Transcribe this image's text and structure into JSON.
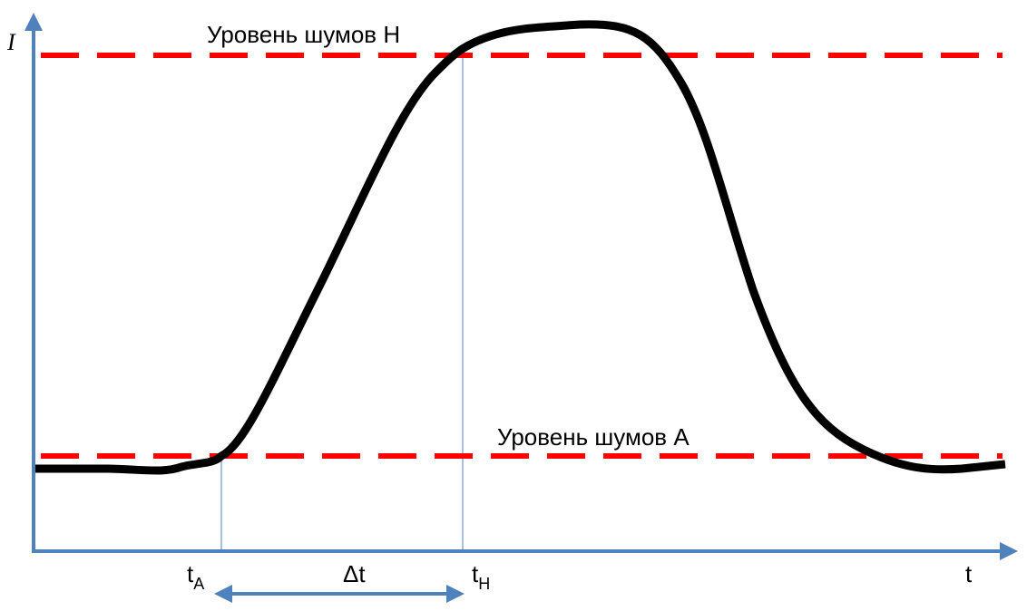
{
  "axes": {
    "y_label": "I",
    "x_label": "t"
  },
  "levels": [
    {
      "label": "Уровень шумов Н"
    },
    {
      "label": "Уровень шумов А"
    }
  ],
  "markers": [
    {
      "label": "t",
      "subscript": "A"
    },
    {
      "label": "t",
      "subscript": "H"
    }
  ],
  "interval": {
    "label": "Δt"
  }
}
